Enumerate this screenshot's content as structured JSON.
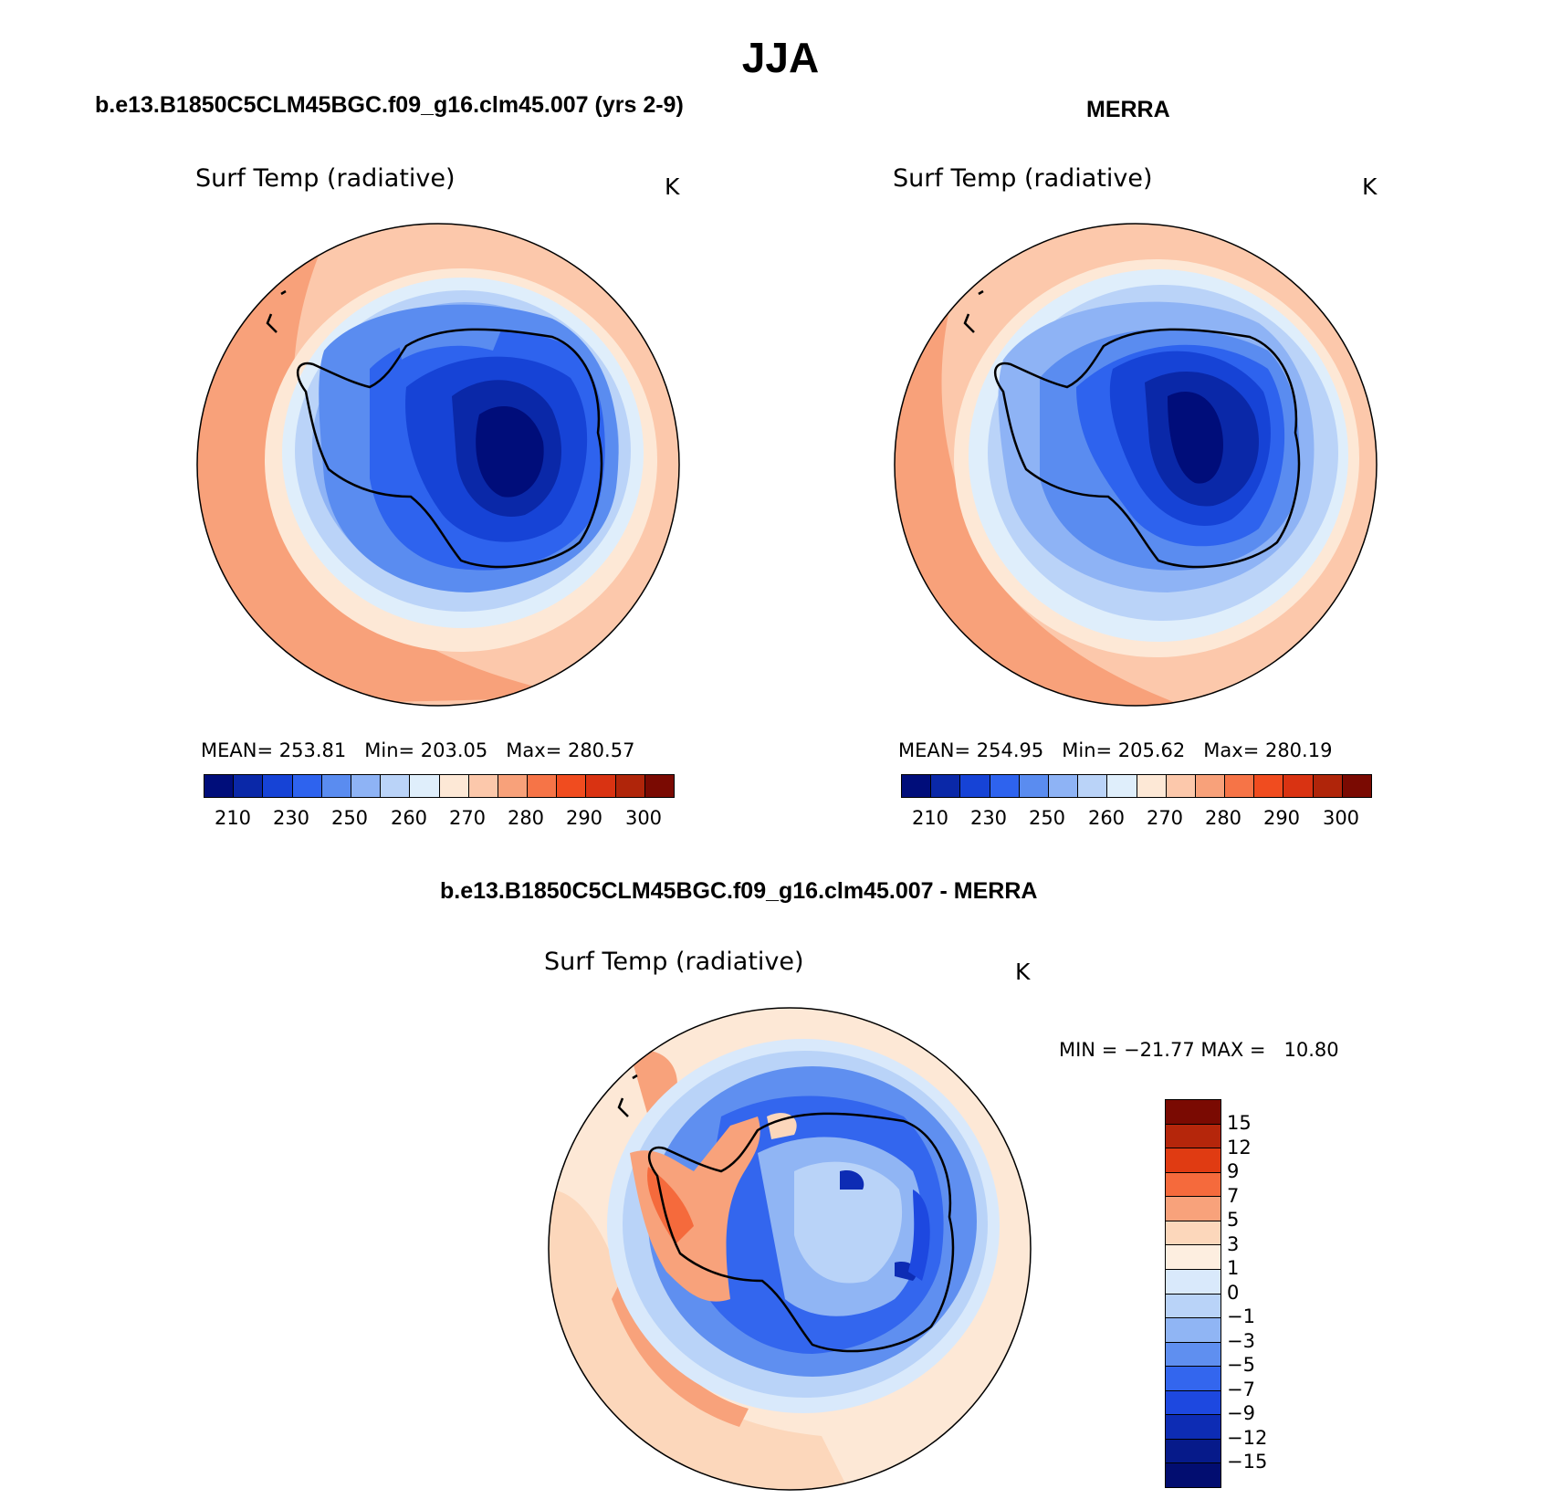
{
  "title": "JJA",
  "panels": [
    {
      "run_title": "b.e13.B1850C5CLM45BGC.f09_g16.clm45.007 (yrs 2-9)",
      "variable": "Surf Temp (radiative)",
      "units": "K",
      "stats": "MEAN= 253.81   Min= 203.05   Max= 280.57",
      "mean": 253.81,
      "min": 203.05,
      "max": 280.57
    },
    {
      "run_title": "MERRA",
      "variable": "Surf Temp (radiative)",
      "units": "K",
      "stats": "MEAN= 254.95   Min= 205.62   Max= 280.19",
      "mean": 254.95,
      "min": 205.62,
      "max": 280.19
    },
    {
      "run_title": "b.e13.B1850C5CLM45BGC.f09_g16.clm45.007 - MERRA",
      "variable": "Surf Temp (radiative)",
      "units": "K",
      "stats": "MIN = −21.77 MAX =   10.80",
      "min": -21.77,
      "max": 10.8
    }
  ],
  "abs_colorbar": {
    "colors": [
      "#000d7a",
      "#0a28a8",
      "#1643d6",
      "#2e63ee",
      "#5a8cf0",
      "#8eb3f5",
      "#bad3f8",
      "#dfeefb",
      "#fde8d6",
      "#fcc8ab",
      "#f8a17a",
      "#f67447",
      "#f04c1f",
      "#d93312",
      "#b0250a",
      "#7a0a02"
    ],
    "ticks": [
      "210",
      "230",
      "250",
      "260",
      "270",
      "280",
      "290",
      "300"
    ]
  },
  "diff_colorbar": {
    "colors": [
      "#7a0a02",
      "#b5260b",
      "#e03b12",
      "#f56a3c",
      "#f8a27b",
      "#fcd7bb",
      "#fdeee0",
      "#d9e9fb",
      "#b9d3f8",
      "#90b5f4",
      "#5f8ff0",
      "#3366ee",
      "#1d48e0",
      "#0d2cb4",
      "#061a8a",
      "#020d70"
    ],
    "ticks": [
      "15",
      "12",
      "9",
      "7",
      "5",
      "3",
      "1",
      "0",
      "−1",
      "−3",
      "−5",
      "−7",
      "−9",
      "−12",
      "−15"
    ]
  }
}
